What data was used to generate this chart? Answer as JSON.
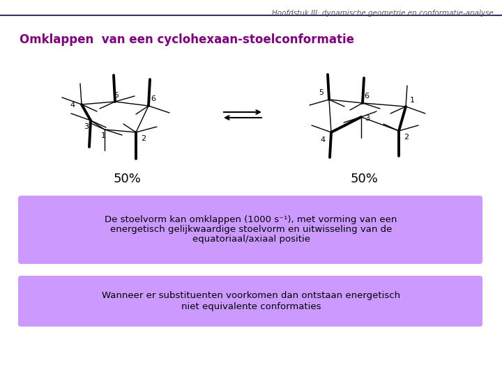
{
  "title": "Hoofdstuk III: dynamische geometrie en conformatie-analyse",
  "heading": "Omklappen  van een cyclohexaan-stoelconformatie",
  "heading_color": "#800080",
  "bg_color": "#ffffff",
  "box1_color": "#cc99ff",
  "box2_color": "#cc99ff",
  "text_box1_line1": "De stoelvorm kan omklappen (1000 s",
  "text_box1_sup": "-1",
  "text_box1_line1b": "), met vorming van een",
  "text_box1_line2": "energetisch gelijkwaardige stoelvorm en uitwisseling van de",
  "text_box1_line3": "equatoriaal/axiaal positie",
  "text_box2_line1": "Wanneer er substituenten voorkomen dan ontstaan energetisch",
  "text_box2_line2": "niet equivalente conformaties",
  "percent_left": "50%",
  "percent_right": "50%",
  "title_color": "#555555",
  "line_color": "#333366",
  "lw_thin": 1.0,
  "lw_thick": 2.8
}
